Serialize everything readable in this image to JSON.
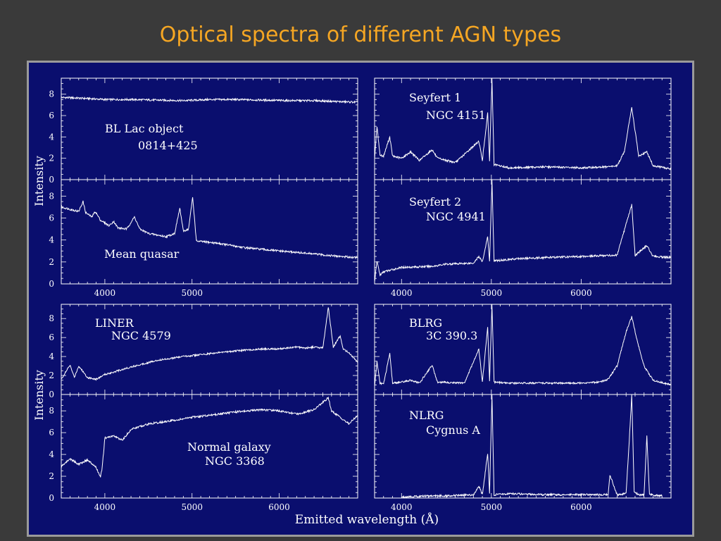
{
  "slide": {
    "title": "Optical spectra of different AGN types"
  },
  "figure": {
    "ylabel_top": "Intensity",
    "ylabel_bottom": "Intensity",
    "xlabel": "Emitted wavelength (Å)"
  },
  "chart_data": [
    {
      "type": "line",
      "panel": "left-1",
      "labels": [
        "BL Lac object",
        "0814+425"
      ],
      "xlim": [
        3500,
        6900
      ],
      "ylim": [
        0,
        9.5
      ],
      "yticks": [
        0,
        2,
        4,
        6,
        8
      ],
      "series": [
        {
          "x": [
            3500,
            3800,
            4000,
            4300,
            4600,
            4900,
            5200,
            5500,
            5800,
            6100,
            6400,
            6700,
            6900
          ],
          "y": [
            7.7,
            7.6,
            7.5,
            7.5,
            7.45,
            7.4,
            7.5,
            7.5,
            7.45,
            7.4,
            7.4,
            7.3,
            7.25
          ]
        }
      ]
    },
    {
      "type": "line",
      "panel": "left-2",
      "labels": [
        "Mean quasar"
      ],
      "xlim": [
        3500,
        6900
      ],
      "ylim": [
        0,
        9.5
      ],
      "yticks": [
        0,
        2,
        4,
        6,
        8
      ],
      "xticks": [
        4000,
        5000
      ],
      "series": [
        {
          "x": [
            3500,
            3700,
            3750,
            3780,
            3850,
            3890,
            3950,
            4050,
            4100,
            4150,
            4250,
            4340,
            4400,
            4500,
            4700,
            4800,
            4860,
            4900,
            4960,
            5007,
            5050,
            5300,
            5600,
            6000,
            6300,
            6563,
            6700,
            6900
          ],
          "y": [
            7.0,
            6.6,
            7.5,
            6.5,
            6.1,
            6.6,
            5.8,
            5.3,
            5.7,
            5.1,
            5.0,
            6.1,
            5.0,
            4.6,
            4.3,
            4.6,
            6.9,
            4.8,
            5.0,
            7.9,
            3.9,
            3.7,
            3.3,
            3.0,
            2.8,
            2.6,
            2.5,
            2.4
          ]
        }
      ]
    },
    {
      "type": "line",
      "panel": "right-1",
      "labels": [
        "Seyfert 1",
        "NGC 4151"
      ],
      "xlim": [
        3700,
        7000
      ],
      "ylim": [
        0,
        9.5
      ],
      "series": [
        {
          "x": [
            3700,
            3727,
            3760,
            3800,
            3869,
            3900,
            4000,
            4101,
            4200,
            4340,
            4400,
            4600,
            4861,
            4900,
            4959,
            4980,
            5007,
            5030,
            5200,
            5600,
            6000,
            6300,
            6400,
            6480,
            6563,
            6640,
            6731,
            6800,
            7000
          ],
          "y": [
            2.0,
            5.0,
            2.3,
            2.2,
            4.0,
            2.2,
            2.0,
            2.6,
            1.8,
            2.8,
            2.0,
            1.6,
            3.6,
            1.8,
            6.2,
            1.8,
            9.5,
            1.4,
            1.1,
            1.2,
            1.1,
            1.2,
            1.3,
            2.6,
            6.8,
            2.2,
            2.6,
            1.3,
            1.0
          ]
        }
      ]
    },
    {
      "type": "line",
      "panel": "right-2",
      "labels": [
        "Seyfert 2",
        "NGC 4941"
      ],
      "xlim": [
        3700,
        7000
      ],
      "ylim": [
        0,
        9.5
      ],
      "xticks": [
        4000,
        5000,
        6000
      ],
      "series": [
        {
          "x": [
            3700,
            3727,
            3760,
            3800,
            3900,
            4000,
            4340,
            4500,
            4800,
            4861,
            4900,
            4959,
            4980,
            5007,
            5030,
            5300,
            5600,
            6000,
            6300,
            6400,
            6563,
            6600,
            6731,
            6800,
            7000
          ],
          "y": [
            0.2,
            2.1,
            0.8,
            1.1,
            1.3,
            1.5,
            1.6,
            1.8,
            1.9,
            2.5,
            2.0,
            4.3,
            2.0,
            9.5,
            2.1,
            2.3,
            2.4,
            2.5,
            2.6,
            2.6,
            7.2,
            2.6,
            3.5,
            2.5,
            2.4
          ]
        }
      ]
    },
    {
      "type": "line",
      "panel": "left-3",
      "labels": [
        "LINER",
        "NGC 4579"
      ],
      "xlim": [
        3500,
        6900
      ],
      "ylim": [
        0,
        9.5
      ],
      "yticks": [
        0,
        2,
        4,
        6,
        8
      ],
      "series": [
        {
          "x": [
            3500,
            3600,
            3650,
            3700,
            3800,
            3900,
            4000,
            4300,
            4600,
            4900,
            5200,
            5500,
            5800,
            6000,
            6200,
            6300,
            6400,
            6500,
            6563,
            6620,
            6700,
            6731,
            6800,
            6900
          ],
          "y": [
            1.6,
            3.1,
            1.8,
            3.0,
            1.8,
            1.6,
            2.1,
            2.9,
            3.6,
            4.0,
            4.3,
            4.6,
            4.8,
            4.8,
            5.0,
            4.9,
            5.0,
            4.9,
            9.2,
            5.0,
            6.2,
            4.8,
            4.4,
            3.4
          ]
        }
      ]
    },
    {
      "type": "line",
      "panel": "left-4",
      "labels": [
        "Normal galaxy",
        "NGC 3368"
      ],
      "xlim": [
        3500,
        6900
      ],
      "ylim": [
        0,
        9.5
      ],
      "yticks": [
        0,
        2,
        4,
        6,
        8
      ],
      "xticks": [
        4000,
        5000,
        6000
      ],
      "series": [
        {
          "x": [
            3500,
            3600,
            3700,
            3800,
            3900,
            3950,
            3970,
            4000,
            4100,
            4200,
            4300,
            4500,
            4700,
            5000,
            5300,
            5500,
            5800,
            6000,
            6200,
            6400,
            6563,
            6600,
            6800,
            6900
          ],
          "y": [
            2.9,
            3.6,
            3.1,
            3.5,
            2.8,
            1.9,
            2.8,
            5.5,
            5.7,
            5.3,
            6.3,
            6.8,
            7.0,
            7.4,
            7.7,
            7.9,
            8.1,
            8.0,
            7.7,
            8.1,
            9.2,
            8.0,
            6.8,
            7.6
          ]
        }
      ]
    },
    {
      "type": "line",
      "panel": "right-3",
      "labels": [
        "BLRG",
        "3C 390.3"
      ],
      "xlim": [
        3700,
        7000
      ],
      "ylim": [
        0,
        9.5
      ],
      "series": [
        {
          "x": [
            3700,
            3727,
            3760,
            3800,
            3869,
            3900,
            4000,
            4101,
            4200,
            4340,
            4400,
            4700,
            4861,
            4900,
            4959,
            4980,
            5007,
            5030,
            5200,
            6000,
            6200,
            6300,
            6400,
            6500,
            6563,
            6620,
            6700,
            6800,
            7000
          ],
          "y": [
            0.8,
            3.5,
            1.2,
            1.1,
            4.3,
            1.2,
            1.3,
            1.5,
            1.2,
            3.1,
            1.3,
            1.2,
            4.8,
            1.3,
            7.1,
            1.4,
            9.5,
            1.3,
            1.2,
            1.2,
            1.3,
            1.6,
            3.0,
            6.6,
            8.2,
            5.8,
            3.0,
            1.5,
            1.0
          ]
        }
      ]
    },
    {
      "type": "line",
      "panel": "right-4",
      "labels": [
        "NLRG",
        "Cygnus A"
      ],
      "xlim": [
        3700,
        7000
      ],
      "ylim": [
        0,
        9.5
      ],
      "xticks": [
        4000,
        5000,
        6000
      ],
      "series": [
        {
          "x": [
            4000,
            4300,
            4500,
            4800,
            4861,
            4900,
            4959,
            4980,
            5007,
            5030,
            5200,
            5600,
            6000,
            6300,
            6320,
            6400,
            6500,
            6540,
            6563,
            6590,
            6650,
            6700,
            6731,
            6760,
            6900
          ],
          "y": [
            0.1,
            0.2,
            0.2,
            0.3,
            1.1,
            0.3,
            4.1,
            0.4,
            9.5,
            0.3,
            0.4,
            0.3,
            0.3,
            0.3,
            2.1,
            0.3,
            0.4,
            6.0,
            9.5,
            0.5,
            0.3,
            0.3,
            5.7,
            0.3,
            0.2
          ]
        }
      ]
    }
  ]
}
